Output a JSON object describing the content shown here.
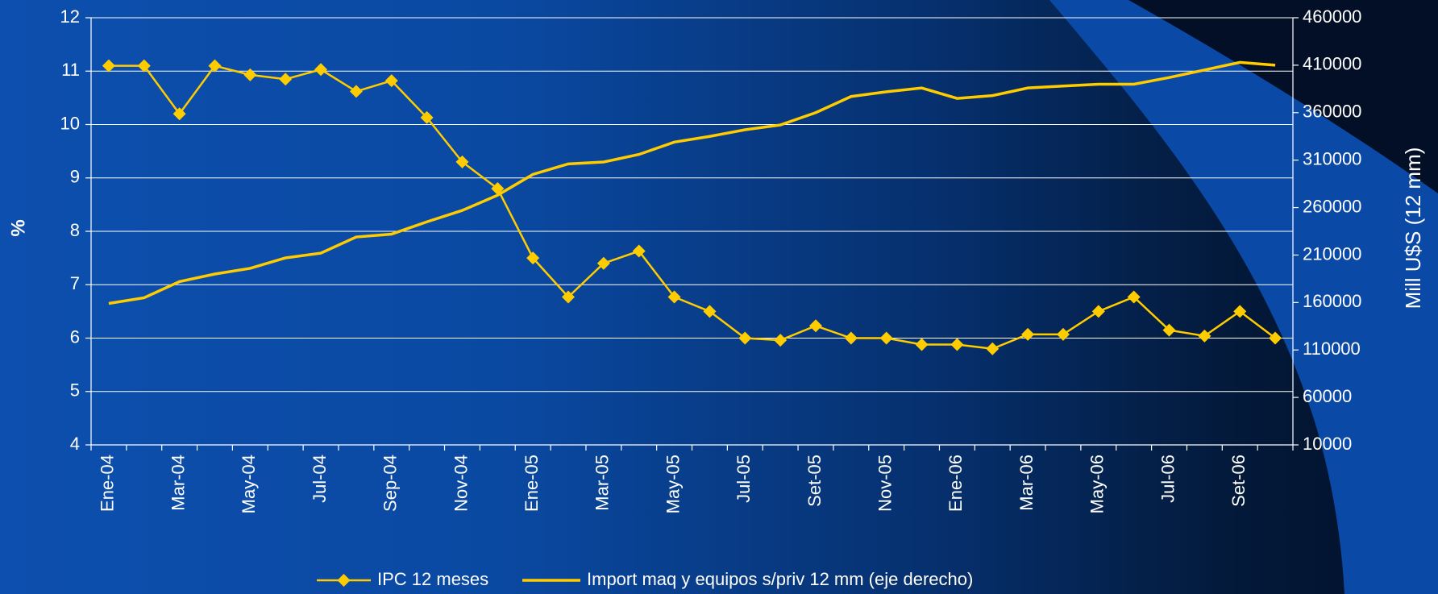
{
  "chart_data": {
    "type": "line",
    "categories": [
      "Ene-04",
      null,
      "Mar-04",
      null,
      "May-04",
      null,
      "Jul-04",
      null,
      "Sep-04",
      null,
      "Nov-04",
      null,
      "Ene-05",
      null,
      "Mar-05",
      null,
      "May-05",
      null,
      "Jul-05",
      null,
      "Set-05",
      null,
      "Nov-05",
      null,
      "Ene-06",
      null,
      "Mar-06",
      null,
      "May-06",
      null,
      "Jul-06",
      null,
      "Set-06",
      null
    ],
    "series": [
      {
        "name": "IPC 12 meses",
        "color": "#ffcc00",
        "marker": "diamond",
        "values": [
          11.1,
          11.1,
          10.2,
          11.1,
          10.93,
          10.85,
          11.03,
          10.62,
          10.82,
          10.13,
          9.3,
          8.8,
          7.5,
          6.77,
          7.4,
          7.63,
          6.77,
          6.5,
          6.0,
          5.96,
          6.23,
          6.0,
          6.0,
          5.88,
          5.88,
          5.8,
          6.07,
          6.07,
          6.5,
          6.77,
          6.15,
          6.04,
          6.5,
          6.0
        ]
      },
      {
        "name": "Import maq y equipos s/priv 12 mm (eje derecho)",
        "color": "#ffcc00",
        "axis": "y2",
        "values": [
          159000,
          165000,
          182000,
          190000,
          196000,
          207000,
          212000,
          229000,
          232000,
          245000,
          257000,
          273000,
          295000,
          306000,
          308000,
          316000,
          329000,
          335000,
          342000,
          347000,
          360000,
          377000,
          382000,
          386000,
          375000,
          378000,
          386000,
          388000,
          390000,
          390000,
          397000,
          405000,
          413000,
          410000
        ]
      }
    ],
    "y_label": "%",
    "y2_label": "Mill U$S (12 mm)",
    "ylim": [
      4,
      12
    ],
    "yticks": [
      4,
      5,
      6,
      7,
      8,
      9,
      10,
      11,
      12
    ],
    "y2lim": [
      10000,
      460000
    ],
    "y2ticks": [
      10000,
      60000,
      110000,
      160000,
      210000,
      260000,
      310000,
      360000,
      410000,
      460000
    ],
    "grid": true,
    "legend": "bottom"
  }
}
